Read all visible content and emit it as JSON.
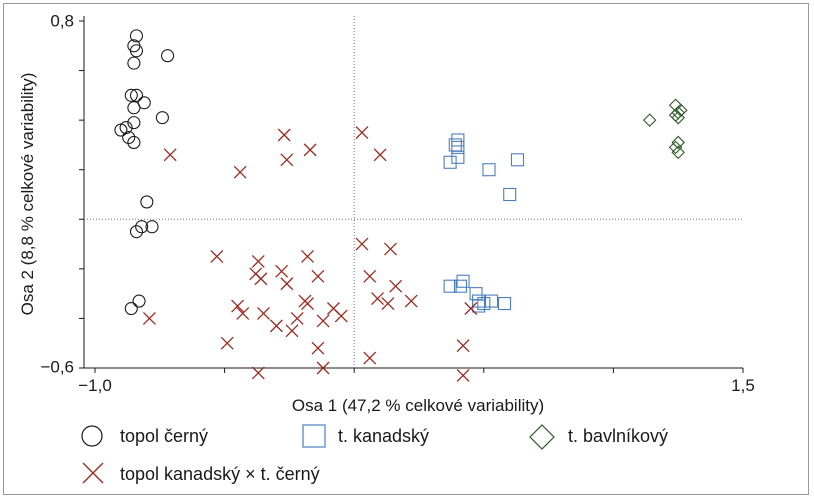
{
  "chart_data": {
    "type": "scatter",
    "title": "",
    "xlabel": "Osa 1 (47,2 % celkové variability)",
    "ylabel": "Osa 2 (8,8 % celkové variability)",
    "xlim": [
      -1.0,
      1.5
    ],
    "ylim": [
      -0.6,
      0.8
    ],
    "x_ticks": [
      "−1,0",
      "1,5"
    ],
    "y_ticks": [
      "0,8",
      "−0,6"
    ],
    "reference_lines": {
      "x": 0.0,
      "y": 0.0,
      "style": "dotted"
    },
    "grid": false,
    "legend_position": "bottom",
    "series": [
      {
        "name": "topol černý",
        "marker": "circle",
        "color": "#1a1a1a",
        "points": [
          [
            -0.84,
            0.74
          ],
          [
            -0.85,
            0.7
          ],
          [
            -0.84,
            0.68
          ],
          [
            -0.72,
            0.66
          ],
          [
            -0.85,
            0.63
          ],
          [
            -0.86,
            0.5
          ],
          [
            -0.84,
            0.5
          ],
          [
            -0.81,
            0.47
          ],
          [
            -0.85,
            0.45
          ],
          [
            -0.74,
            0.41
          ],
          [
            -0.85,
            0.39
          ],
          [
            -0.88,
            0.37
          ],
          [
            -0.9,
            0.36
          ],
          [
            -0.87,
            0.33
          ],
          [
            -0.85,
            0.31
          ],
          [
            -0.8,
            0.07
          ],
          [
            -0.82,
            -0.03
          ],
          [
            -0.78,
            -0.03
          ],
          [
            -0.84,
            -0.05
          ],
          [
            -0.83,
            -0.33
          ],
          [
            -0.86,
            -0.36
          ]
        ]
      },
      {
        "name": "t. kanadský",
        "marker": "square",
        "color": "#4a7fbf",
        "points": [
          [
            0.4,
            0.32
          ],
          [
            0.39,
            0.3
          ],
          [
            0.4,
            0.29
          ],
          [
            0.63,
            0.24
          ],
          [
            0.37,
            0.23
          ],
          [
            0.4,
            0.25
          ],
          [
            0.52,
            0.2
          ],
          [
            0.6,
            0.1
          ],
          [
            0.42,
            -0.25
          ],
          [
            0.41,
            -0.27
          ],
          [
            0.37,
            -0.27
          ],
          [
            0.47,
            -0.3
          ],
          [
            0.48,
            -0.33
          ],
          [
            0.5,
            -0.34
          ],
          [
            0.53,
            -0.33
          ],
          [
            0.58,
            -0.34
          ],
          [
            0.48,
            -0.35
          ]
        ]
      },
      {
        "name": "t. bavlníkový",
        "marker": "diamond",
        "color": "#2e5a27",
        "points": [
          [
            1.24,
            0.46
          ],
          [
            1.26,
            0.44
          ],
          [
            1.25,
            0.43
          ],
          [
            1.24,
            0.42
          ],
          [
            1.25,
            0.41
          ],
          [
            1.14,
            0.4
          ],
          [
            1.25,
            0.31
          ],
          [
            1.24,
            0.29
          ],
          [
            1.25,
            0.27
          ]
        ]
      },
      {
        "name": "topol kanadský × t. černý",
        "marker": "x",
        "color": "#9b2a20",
        "points": [
          [
            -0.71,
            0.26
          ],
          [
            -0.44,
            0.19
          ],
          [
            -0.27,
            0.34
          ],
          [
            -0.26,
            0.24
          ],
          [
            -0.17,
            0.28
          ],
          [
            0.03,
            0.35
          ],
          [
            0.1,
            0.26
          ],
          [
            -0.53,
            -0.15
          ],
          [
            -0.37,
            -0.17
          ],
          [
            -0.28,
            -0.21
          ],
          [
            -0.18,
            -0.15
          ],
          [
            -0.38,
            -0.22
          ],
          [
            -0.36,
            -0.24
          ],
          [
            -0.26,
            -0.26
          ],
          [
            -0.14,
            -0.23
          ],
          [
            -0.18,
            -0.34
          ],
          [
            -0.12,
            -0.41
          ],
          [
            -0.45,
            -0.35
          ],
          [
            -0.43,
            -0.38
          ],
          [
            -0.35,
            -0.38
          ],
          [
            -0.22,
            -0.4
          ],
          [
            -0.19,
            -0.33
          ],
          [
            -0.49,
            -0.5
          ],
          [
            -0.3,
            -0.43
          ],
          [
            -0.24,
            -0.45
          ],
          [
            -0.08,
            -0.36
          ],
          [
            -0.05,
            -0.39
          ],
          [
            -0.37,
            -0.62
          ],
          [
            -0.14,
            -0.52
          ],
          [
            -0.12,
            -0.6
          ],
          [
            0.06,
            -0.56
          ],
          [
            0.06,
            -0.23
          ],
          [
            0.03,
            -0.1
          ],
          [
            0.09,
            -0.32
          ],
          [
            0.13,
            -0.34
          ],
          [
            0.14,
            -0.12
          ],
          [
            0.16,
            -0.27
          ],
          [
            0.22,
            -0.33
          ],
          [
            0.45,
            -0.36
          ],
          [
            0.42,
            -0.51
          ],
          [
            0.42,
            -0.63
          ],
          [
            -0.79,
            -0.4
          ]
        ]
      }
    ]
  }
}
